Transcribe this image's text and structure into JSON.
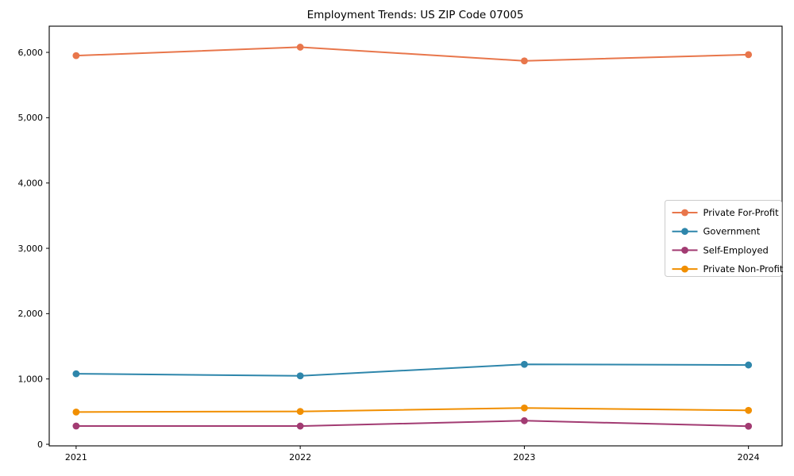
{
  "chart_data": {
    "type": "line",
    "title": "Employment Trends: US ZIP Code 07005",
    "xlabel": "",
    "ylabel": "",
    "x": [
      2021,
      2022,
      2023,
      2024
    ],
    "x_tick_labels": [
      "2021",
      "2022",
      "2023",
      "2024"
    ],
    "y_ticks": [
      0,
      1000,
      2000,
      3000,
      4000,
      5000,
      6000
    ],
    "y_tick_labels": [
      "0",
      "1,000",
      "2,000",
      "3,000",
      "4,000",
      "5,000",
      "6,000"
    ],
    "xlim": [
      2020.88,
      2024.15
    ],
    "ylim": [
      -24,
      6401
    ],
    "grid": false,
    "legend_position": "center right",
    "marker": "o",
    "series": [
      {
        "name": "Private For-Profit",
        "color": "#E8764B",
        "values": [
          5950,
          6080,
          5870,
          5965
        ]
      },
      {
        "name": "Government",
        "color": "#2E86AB",
        "values": [
          1080,
          1048,
          1224,
          1214
        ]
      },
      {
        "name": "Self-Employed",
        "color": "#A23B72",
        "values": [
          280,
          279,
          361,
          277
        ]
      },
      {
        "name": "Private Non-Profit",
        "color": "#F18F01",
        "values": [
          494,
          503,
          556,
          519
        ]
      }
    ],
    "axis_color": "#000000",
    "legend_border_color": "#cccccc",
    "legend_background": "#ffffff"
  }
}
